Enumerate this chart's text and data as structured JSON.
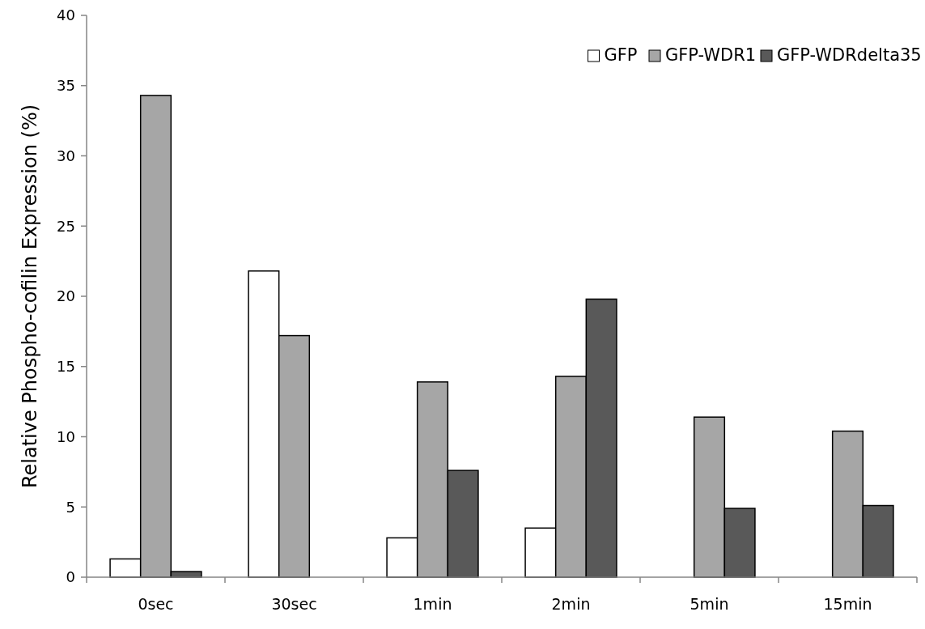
{
  "chart_data": {
    "type": "bar",
    "ylabel": "Relative Phospho-cofilin Expression (%)",
    "categories": [
      "0sec",
      "30sec",
      "1min",
      "2min",
      "5min",
      "15min"
    ],
    "series": [
      {
        "name": "GFP",
        "color": "#ffffff",
        "values": [
          1.3,
          21.8,
          2.8,
          3.5,
          null,
          null
        ]
      },
      {
        "name": "GFP-WDR1",
        "color": "#a6a6a6",
        "values": [
          34.3,
          17.2,
          13.9,
          14.3,
          11.4,
          10.4
        ]
      },
      {
        "name": "GFP-WDRdelta35",
        "color": "#595959",
        "values": [
          0.4,
          null,
          7.6,
          19.8,
          4.9,
          5.1
        ]
      }
    ],
    "ylim": [
      0,
      40
    ],
    "yticks": [
      0,
      5,
      10,
      15,
      20,
      25,
      30,
      35,
      40
    ],
    "grid": false,
    "legend": "top right"
  }
}
